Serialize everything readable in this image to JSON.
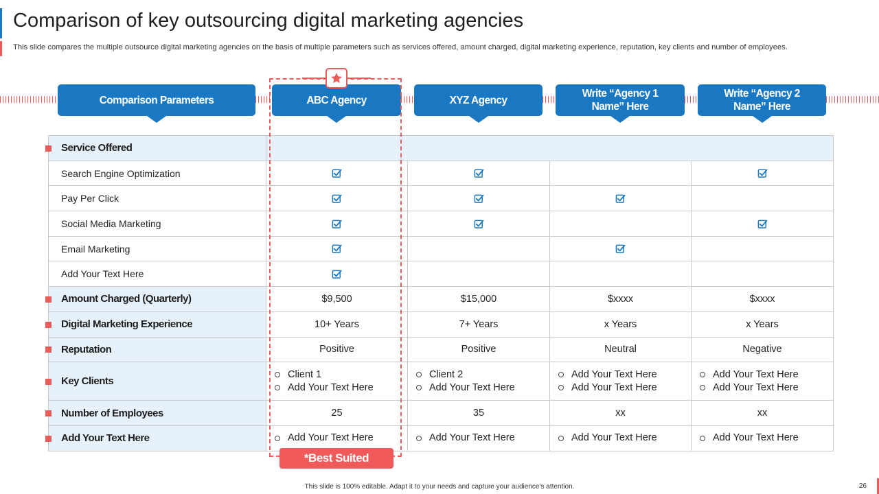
{
  "title": "Comparison of key outsourcing digital marketing agencies",
  "subtitle": "This slide compares the multiple outsource digital marketing agencies on the basis of multiple parameters such as services offered, amount charged, digital marketing experience, reputation, key clients and number of employees.",
  "headers": [
    "Comparison Parameters",
    "ABC Agency",
    "XYZ Agency",
    "Write “Agency 1\nName” Here",
    "Write “Agency 2\nName” Here"
  ],
  "section_service": "Service Offered",
  "services": [
    {
      "label": "Search Engine Optimization",
      "checks": [
        true,
        true,
        false,
        true
      ]
    },
    {
      "label": "Pay Per Click",
      "checks": [
        true,
        true,
        true,
        false
      ]
    },
    {
      "label": "Social Media Marketing",
      "checks": [
        true,
        true,
        false,
        true
      ]
    },
    {
      "label": "Email Marketing",
      "checks": [
        true,
        false,
        true,
        false
      ]
    },
    {
      "label": "Add Your Text Here",
      "checks": [
        true,
        false,
        false,
        false
      ]
    }
  ],
  "amount": {
    "label": "Amount Charged (Quarterly)",
    "values": [
      "$9,500",
      "$15,000",
      "$xxxx",
      "$xxxx"
    ]
  },
  "experience": {
    "label": "Digital Marketing Experience",
    "values": [
      "10+ Years",
      "7+ Years",
      "x Years",
      "x Years"
    ]
  },
  "reputation": {
    "label": "Reputation",
    "values": [
      "Positive",
      "Positive",
      "Neutral",
      "Negative"
    ]
  },
  "key_clients": {
    "label": "Key Clients",
    "values": [
      [
        "Client 1",
        "Add Your Text Here"
      ],
      [
        "Client 2",
        "Add Your Text Here"
      ],
      [
        "Add Your Text Here",
        "Add Your Text Here"
      ],
      [
        "Add Your Text Here",
        "Add Your Text Here"
      ]
    ]
  },
  "employees": {
    "label": "Number of Employees",
    "values": [
      "25",
      "35",
      "xx",
      "xx"
    ]
  },
  "extra": {
    "label": "Add Your Text Here",
    "values": [
      "Add Your Text Here",
      "Add Your Text Here",
      "Add Your Text Here",
      "Add Your Text Here"
    ]
  },
  "best_suited": "*Best Suited",
  "footer": "This slide is 100% editable. Adapt it to your needs and capture your audience’s attention.",
  "page_number": "26",
  "colors": {
    "accent_blue": "#1a78c2",
    "accent_red": "#e85c5c",
    "section_fill": "#e6f1fb"
  },
  "icons": {
    "check": "checkbox-checked-icon",
    "star": "star-icon",
    "bullet": "hollow-circle-bullet-icon"
  }
}
